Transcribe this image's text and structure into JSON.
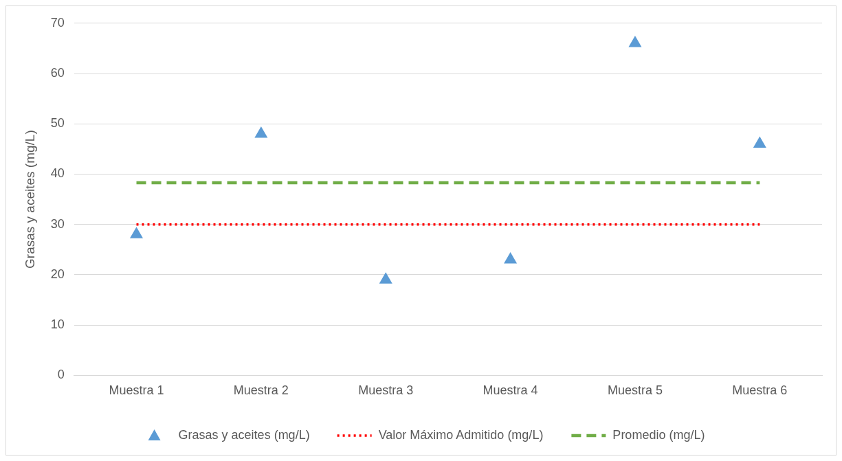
{
  "chart_data": {
    "type": "scatter",
    "categories": [
      "Muestra 1",
      "Muestra 2",
      "Muestra 3",
      "Muestra 4",
      "Muestra 5",
      "Muestra 6"
    ],
    "ylabel": "Grasas y aceites (mg/L)",
    "ylim": [
      0,
      70
    ],
    "yticks": [
      0,
      10,
      20,
      30,
      40,
      50,
      60,
      70
    ],
    "grid": "y",
    "legend": "bottom",
    "series": [
      {
        "name": "Grasas y aceites (mg/L)",
        "color": "#5b9bd5",
        "marker": "triangle",
        "values": [
          28,
          48,
          19,
          23,
          66,
          46
        ]
      },
      {
        "name": "Valor Máximo Admitido (mg/L)",
        "type": "line",
        "color": "#ff0000",
        "line_style": "dotted",
        "marker": "none",
        "values": [
          30,
          30,
          30,
          30,
          30,
          30
        ]
      },
      {
        "name": "Promedio (mg/L)",
        "type": "line",
        "color": "#70ad47",
        "line_style": "dashed",
        "marker": "none",
        "values": [
          38.3,
          38.3,
          38.3,
          38.3,
          38.3,
          38.3
        ]
      }
    ]
  }
}
